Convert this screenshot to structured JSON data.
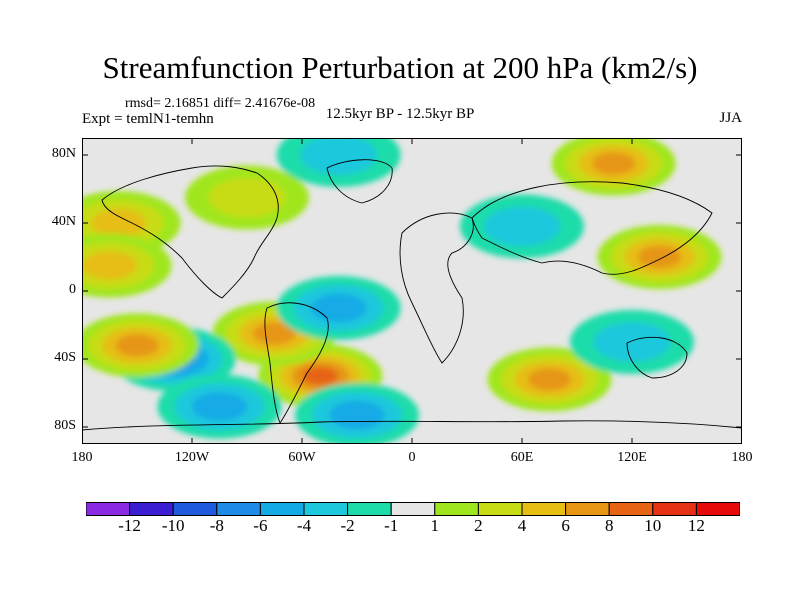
{
  "title": "Streamfunction Perturbation at 200 hPa (km2/s)",
  "stats": "rmsd= 2.16851 diff= 2.41676e-08",
  "expt": "Expt = temlN1-temhn",
  "period": "12.5kyr BP - 12.5kyr BP",
  "season": "JJA",
  "y_ticks": [
    "80N",
    "40N",
    "0",
    "40S",
    "80S"
  ],
  "x_ticks": [
    "180",
    "120W",
    "60W",
    "0",
    "60E",
    "120E",
    "180"
  ],
  "colorbar": {
    "labels": [
      "-12",
      "-10",
      "-8",
      "-6",
      "-4",
      "-2",
      "-1",
      "1",
      "2",
      "4",
      "6",
      "8",
      "10",
      "12"
    ],
    "colors": [
      "#8a2be2",
      "#3c1ed2",
      "#1e5adc",
      "#1e8ce6",
      "#14aae6",
      "#1ec8dc",
      "#1edcaa",
      "#e6e6e6",
      "#a0e61e",
      "#c8dc14",
      "#e6be14",
      "#e69614",
      "#e66414",
      "#e63214",
      "#e60a0a"
    ]
  },
  "chart_data": {
    "type": "filled_contour_map",
    "title": "Streamfunction Perturbation at 200 hPa (km2/s)",
    "variable": "Streamfunction Perturbation",
    "units": "km2/s",
    "level": "200 hPa",
    "xlabel": "",
    "ylabel": "",
    "xlim": [
      -180,
      180
    ],
    "ylim": [
      -90,
      90
    ],
    "contour_levels": [
      -12,
      -10,
      -8,
      -6,
      -4,
      -2,
      -1,
      1,
      2,
      4,
      6,
      8,
      10,
      12
    ],
    "features": [
      {
        "name": "south-atlantic-high",
        "lon": -50,
        "lat": -50,
        "value": 8
      },
      {
        "name": "south-america-east-high",
        "lon": -75,
        "lat": -25,
        "value": 6
      },
      {
        "name": "south-pacific-low",
        "lon": -130,
        "lat": -40,
        "value": -6
      },
      {
        "name": "south-pacific-high-west",
        "lon": -150,
        "lat": -32,
        "value": 6
      },
      {
        "name": "south-pacific-deep-low",
        "lon": -105,
        "lat": -68,
        "value": -4
      },
      {
        "name": "tropical-atlantic-low",
        "lon": -40,
        "lat": -10,
        "value": -4
      },
      {
        "name": "south-indian-high",
        "lon": 75,
        "lat": -52,
        "value": 6
      },
      {
        "name": "southern-ocean-low",
        "lon": -30,
        "lat": -73,
        "value": -4
      },
      {
        "name": "north-pacific-high",
        "lon": 110,
        "lat": 75,
        "value": 6
      },
      {
        "name": "east-asia-low",
        "lon": 60,
        "lat": 38,
        "value": -2
      },
      {
        "name": "north-america-high",
        "lon": -90,
        "lat": 55,
        "value": 2
      },
      {
        "name": "north-pacific-east-high",
        "lon": -160,
        "lat": 40,
        "value": 4
      },
      {
        "name": "central-pacific-high",
        "lon": -165,
        "lat": 15,
        "value": 4
      },
      {
        "name": "western-pacific-high",
        "lon": 135,
        "lat": 20,
        "value": 6
      },
      {
        "name": "arctic-low",
        "lon": -40,
        "lat": 80,
        "value": -2
      },
      {
        "name": "australia-low",
        "lon": 120,
        "lat": -30,
        "value": -2
      }
    ]
  }
}
